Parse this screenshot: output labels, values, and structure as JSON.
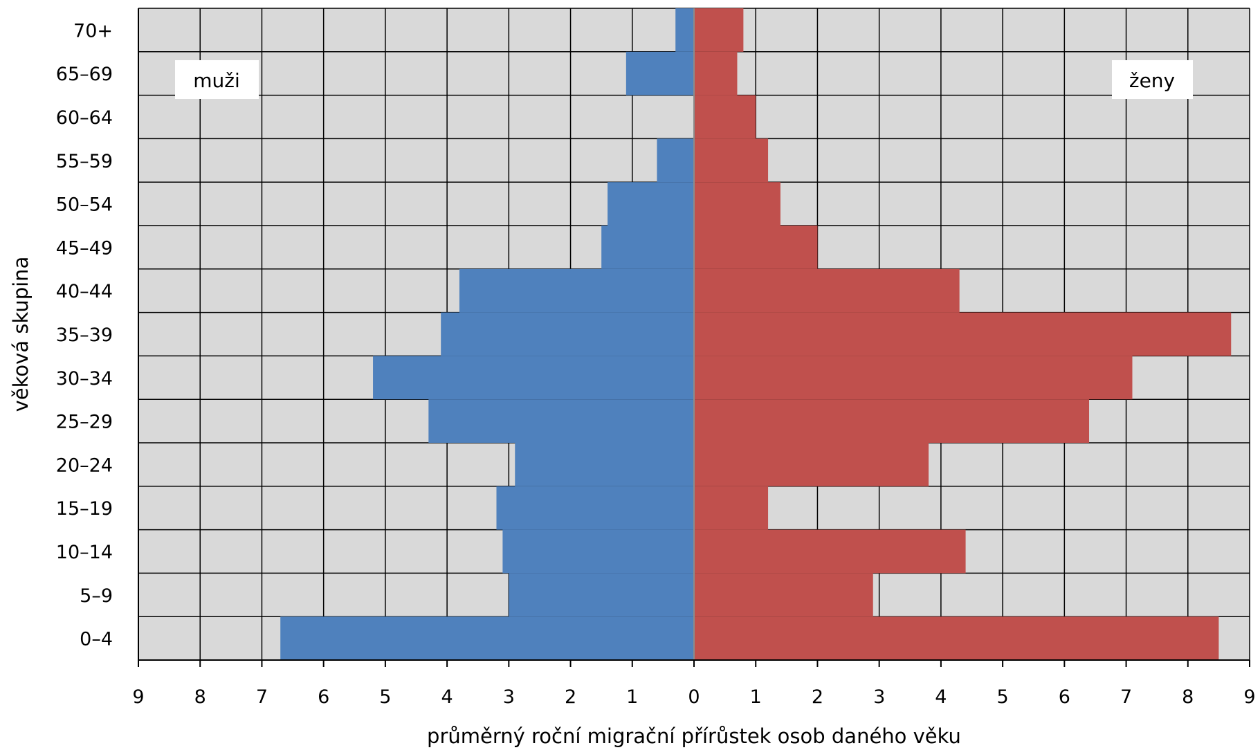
{
  "chart_data": {
    "type": "bar",
    "subtype": "population-pyramid",
    "categories": [
      "0–4",
      "5–9",
      "10–14",
      "15–19",
      "20–24",
      "25–29",
      "30–34",
      "35–39",
      "40–44",
      "45–49",
      "50–54",
      "55–59",
      "60–64",
      "65–69",
      "70+"
    ],
    "series": [
      {
        "name": "muži",
        "color": "#4f81bd",
        "side": "left",
        "values": [
          6.7,
          3.0,
          3.1,
          3.2,
          2.9,
          4.3,
          5.2,
          4.1,
          3.8,
          1.5,
          1.4,
          0.6,
          0.0,
          1.1,
          0.3
        ]
      },
      {
        "name": "ženy",
        "color": "#c0504d",
        "side": "right",
        "values": [
          8.5,
          2.9,
          4.4,
          1.2,
          3.8,
          6.4,
          7.1,
          8.7,
          4.3,
          2.0,
          1.4,
          1.2,
          1.0,
          0.7,
          0.8
        ]
      }
    ],
    "xlabel": "průměrný roční migrační přírůstek osob daného věku",
    "ylabel": "věková skupina",
    "xlim": [
      -9,
      9
    ],
    "x_tick_labels": [
      "9",
      "8",
      "7",
      "6",
      "5",
      "4",
      "3",
      "2",
      "1",
      "0",
      "1",
      "2",
      "3",
      "4",
      "5",
      "6",
      "7",
      "8",
      "9"
    ],
    "grid": true,
    "plot_background": "#d9d9d9",
    "legend": [
      {
        "label": "muži",
        "placement": "top-left"
      },
      {
        "label": "ženy",
        "placement": "top-right"
      }
    ]
  }
}
